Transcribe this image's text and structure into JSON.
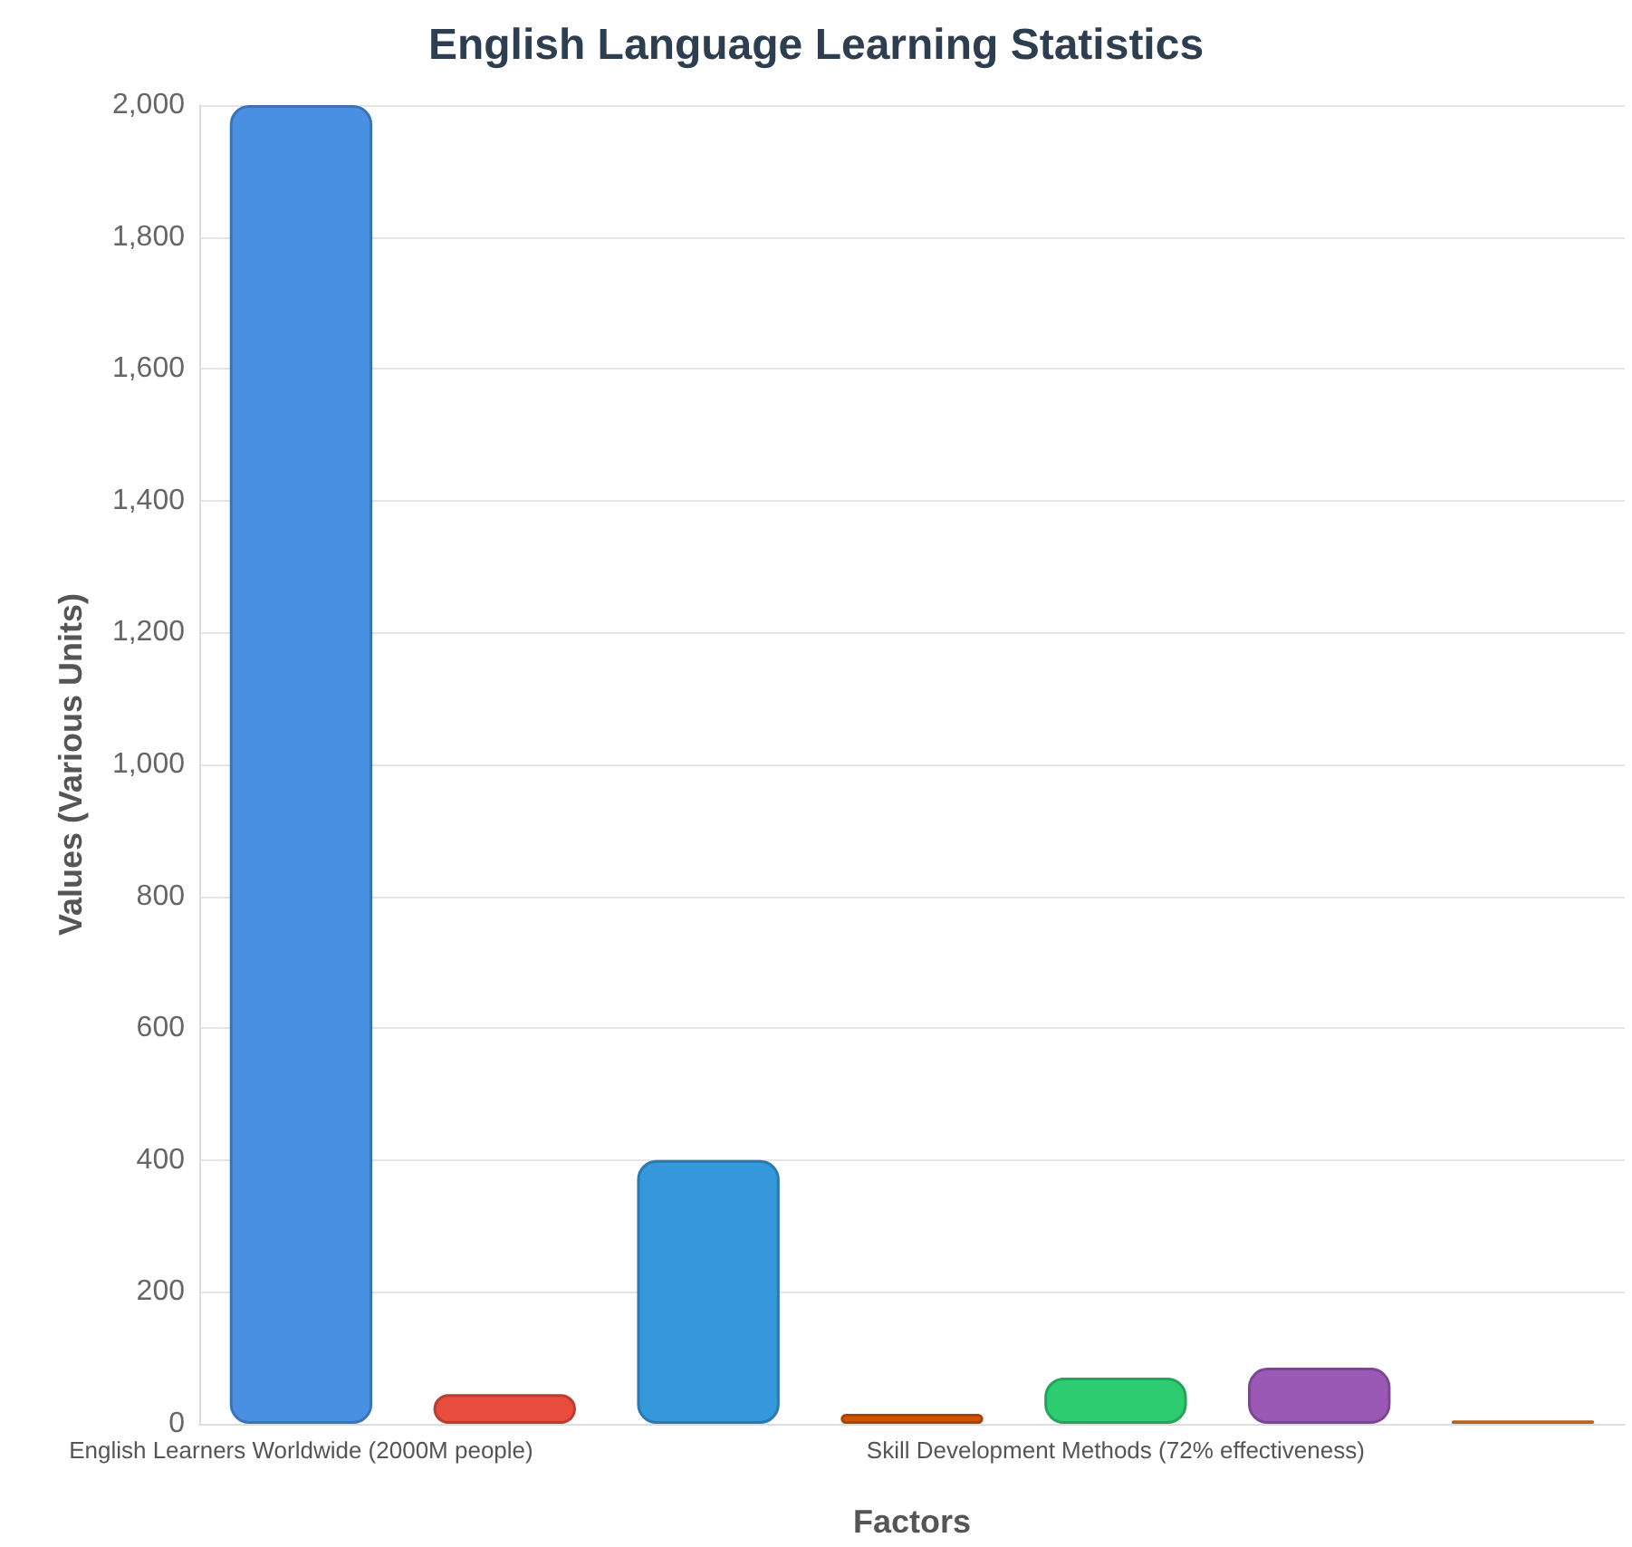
{
  "chart_data": {
    "type": "bar",
    "title": "English Language Learning Statistics",
    "xlabel": "Factors",
    "ylabel": "Values (Various Units)",
    "categories": [
      "English Learners Worldwide (2000M people)",
      null,
      null,
      null,
      "Skill Development Methods (72% effectiveness)",
      null,
      null
    ],
    "values": [
      2000,
      45,
      400,
      15,
      70,
      85,
      5
    ],
    "colors": [
      "#4a90e2",
      "#e74c3c",
      "#3498db",
      "#d35400",
      "#2ecc71",
      "#9b59b6",
      "#e67e22"
    ],
    "ylim": [
      0,
      2000
    ],
    "yticks": [
      0,
      200,
      400,
      600,
      800,
      {
        "value": 1000,
        "label": "1,000"
      },
      {
        "value": 1200,
        "label": "1,200"
      },
      {
        "value": 1400,
        "label": "1,400"
      },
      {
        "value": 1600,
        "label": "1,600"
      },
      {
        "value": 1800,
        "label": "1,800"
      },
      {
        "value": 2000,
        "label": "2,000"
      }
    ],
    "grid": "y"
  }
}
